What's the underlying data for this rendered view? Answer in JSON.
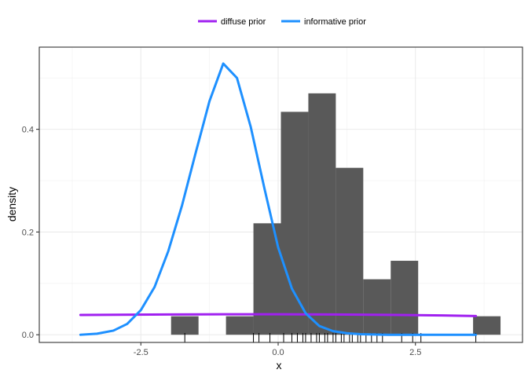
{
  "chart_data": {
    "type": "histogram-with-density",
    "xlabel": "x",
    "ylabel": "density",
    "xlim": [
      -4.35,
      4.45
    ],
    "ylim": [
      -0.015,
      0.56
    ],
    "x_ticks": [
      -2.5,
      0.0,
      2.5
    ],
    "x_tick_labels": [
      "-2.5",
      "0.0",
      "2.5"
    ],
    "y_ticks": [
      0.0,
      0.2,
      0.4
    ],
    "y_tick_labels": [
      "0.0",
      "0.2",
      "0.4"
    ],
    "grid": true,
    "legend_position": "top",
    "histogram": {
      "color": "#595959",
      "bins": [
        {
          "x0": -1.95,
          "x1": -1.45,
          "value": 0.036
        },
        {
          "x0": -1.45,
          "x1": -0.95,
          "value": 0.0
        },
        {
          "x0": -0.95,
          "x1": -0.45,
          "value": 0.036
        },
        {
          "x0": -0.45,
          "x1": 0.05,
          "value": 0.217
        },
        {
          "x0": 0.05,
          "x1": 0.55,
          "value": 0.434
        },
        {
          "x0": 0.55,
          "x1": 1.05,
          "value": 0.47
        },
        {
          "x0": 1.05,
          "x1": 1.55,
          "value": 0.325
        },
        {
          "x0": 1.55,
          "x1": 2.05,
          "value": 0.108
        },
        {
          "x0": 2.05,
          "x1": 2.55,
          "value": 0.144
        },
        {
          "x0": 2.55,
          "x1": 3.05,
          "value": 0.0
        },
        {
          "x0": 3.05,
          "x1": 3.55,
          "value": 0.0
        },
        {
          "x0": 3.55,
          "x1": 4.05,
          "value": 0.036
        }
      ]
    },
    "rug": [
      -1.7,
      -0.45,
      -0.35,
      -0.15,
      0.1,
      0.25,
      0.35,
      0.45,
      0.5,
      0.6,
      0.7,
      0.75,
      0.85,
      0.9,
      1.0,
      1.05,
      1.15,
      1.2,
      1.3,
      1.35,
      1.45,
      1.5,
      1.6,
      1.7,
      1.8,
      1.9,
      2.25,
      2.45,
      2.6,
      3.6
    ],
    "series": [
      {
        "name": "diffuse prior",
        "color": "#a020f0",
        "x": [
          -3.6,
          -2.0,
          -1.0,
          0.0,
          1.0,
          2.0,
          3.0,
          3.6
        ],
        "y": [
          0.0385,
          0.0395,
          0.0398,
          0.0398,
          0.0395,
          0.0388,
          0.0375,
          0.0365
        ]
      },
      {
        "name": "informative prior",
        "color": "#1e90ff",
        "x": [
          -3.6,
          -3.3,
          -3.0,
          -2.75,
          -2.5,
          -2.25,
          -2.0,
          -1.75,
          -1.5,
          -1.25,
          -1.0,
          -0.75,
          -0.5,
          -0.25,
          0.0,
          0.25,
          0.5,
          0.75,
          1.0,
          1.25,
          1.5,
          1.75,
          2.0,
          2.5,
          3.0,
          3.6
        ],
        "y": [
          0.0,
          0.002,
          0.008,
          0.021,
          0.048,
          0.093,
          0.163,
          0.252,
          0.355,
          0.455,
          0.528,
          0.5,
          0.405,
          0.285,
          0.17,
          0.09,
          0.042,
          0.017,
          0.007,
          0.003,
          0.001,
          0.0005,
          0.0,
          0.0,
          0.0,
          0.0
        ]
      }
    ]
  }
}
